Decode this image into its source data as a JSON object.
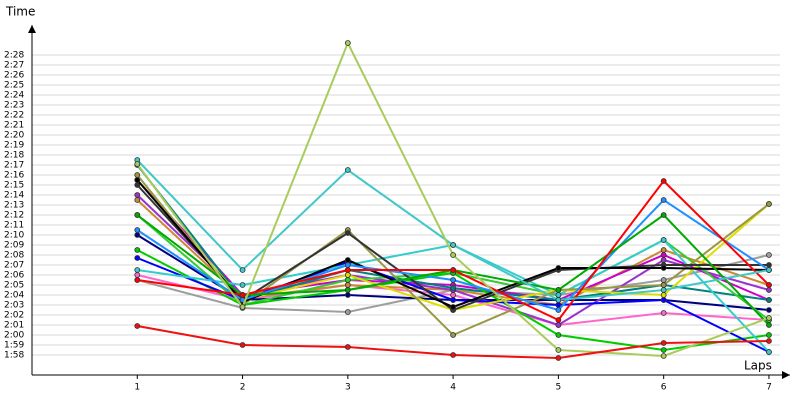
{
  "chart_data": {
    "type": "line",
    "y_label": "Time",
    "x_label": "Laps",
    "x": [
      1,
      2,
      3,
      4,
      5,
      6,
      7
    ],
    "xlim": [
      0,
      7.2
    ],
    "xticks": [
      1,
      2,
      3,
      4,
      5,
      6,
      7
    ],
    "ylim": [
      116,
      151
    ],
    "yticks": [
      {
        "value": 118,
        "label": "1:58"
      },
      {
        "value": 119,
        "label": "1:59"
      },
      {
        "value": 120,
        "label": "2:00"
      },
      {
        "value": 121,
        "label": "2:01"
      },
      {
        "value": 122,
        "label": "2:02"
      },
      {
        "value": 123,
        "label": "2:03"
      },
      {
        "value": 124,
        "label": "2:04"
      },
      {
        "value": 125,
        "label": "2:05"
      },
      {
        "value": 126,
        "label": "2:06"
      },
      {
        "value": 127,
        "label": "2:07"
      },
      {
        "value": 128,
        "label": "2:08"
      },
      {
        "value": 129,
        "label": "2:09"
      },
      {
        "value": 130,
        "label": "2:10"
      },
      {
        "value": 131,
        "label": "2:11"
      },
      {
        "value": 132,
        "label": "2:12"
      },
      {
        "value": 133,
        "label": "2:13"
      },
      {
        "value": 134,
        "label": "2:14"
      },
      {
        "value": 135,
        "label": "2:15"
      },
      {
        "value": 136,
        "label": "2:16"
      },
      {
        "value": 137,
        "label": "2:17"
      },
      {
        "value": 138,
        "label": "2:18"
      },
      {
        "value": 139,
        "label": "2:19"
      },
      {
        "value": 140,
        "label": "2:20"
      },
      {
        "value": 141,
        "label": "2:21"
      },
      {
        "value": 142,
        "label": "2:22"
      },
      {
        "value": 143,
        "label": "2:23"
      },
      {
        "value": 144,
        "label": "2:24"
      },
      {
        "value": 145,
        "label": "2:25"
      },
      {
        "value": 146,
        "label": "2:26"
      },
      {
        "value": 147,
        "label": "2:27"
      },
      {
        "value": 148,
        "label": "2:28"
      }
    ],
    "grid": true,
    "series": [
      {
        "color": "#9e9e9e",
        "values": [
          125.5,
          122.7,
          122.3,
          124.5,
          124,
          125.5,
          128
        ]
      },
      {
        "color": "#ff66cc",
        "values": [
          126,
          123.5,
          125,
          124,
          121,
          122.2,
          121.5
        ]
      },
      {
        "color": "#000080",
        "values": [
          130,
          123.5,
          124,
          123.5,
          123.5,
          123.5,
          122.5
        ]
      },
      {
        "color": "#cc8833",
        "values": [
          133.5,
          123.7,
          125,
          124.5,
          123,
          128.5,
          125
        ]
      },
      {
        "color": "#cc00cc",
        "values": [
          135.5,
          124,
          125.5,
          125,
          123.5,
          128,
          123.5
        ]
      },
      {
        "color": "#9933cc",
        "values": [
          134,
          124,
          126,
          124.5,
          121,
          127.5,
          124.5
        ]
      },
      {
        "color": "#008080",
        "values": [
          137,
          123.5,
          126.5,
          124.7,
          123.5,
          125,
          123.5
        ]
      },
      {
        "color": "#33cc33",
        "values": [
          132,
          123,
          125.5,
          126.2,
          124,
          129.5,
          121.5
        ]
      },
      {
        "color": "#00cc00",
        "values": [
          128.5,
          123,
          124.5,
          126.2,
          120,
          118.5,
          120
        ]
      },
      {
        "color": "#0000ff",
        "values": [
          127.7,
          123.5,
          127.3,
          123.5,
          123,
          123.5,
          118.3
        ]
      },
      {
        "color": "#33cccc",
        "values": [
          126.5,
          125,
          127,
          129,
          124,
          129.5,
          118.3
        ]
      },
      {
        "color": "#dddd00",
        "values": [
          135.5,
          123.5,
          126,
          122.5,
          124.5,
          124,
          133.1
        ]
      },
      {
        "color": "#999944",
        "values": [
          136,
          123,
          130.5,
          120,
          124.5,
          125,
          133.1
        ]
      },
      {
        "color": "#333333",
        "values": [
          135,
          123.5,
          130.2,
          122.5,
          126.5,
          127,
          127
        ]
      },
      {
        "color": "#000000",
        "values": [
          135.5,
          123.3,
          127.5,
          122.8,
          126.7,
          126.7,
          126.5
        ]
      },
      {
        "color": "#1e90ff",
        "values": [
          130.5,
          123.5,
          127,
          125.5,
          122.5,
          133.5,
          126.5
        ]
      },
      {
        "color": "#00aa00",
        "values": [
          132,
          124,
          124.5,
          126.5,
          124.5,
          132,
          121
        ]
      },
      {
        "color": "#ff0000",
        "values": [
          125.5,
          124,
          126.5,
          126.5,
          121.5,
          135.4,
          125
        ]
      },
      {
        "color": "#40c8c8",
        "values": [
          137.5,
          126.5,
          136.5,
          129,
          123.5,
          124.5,
          126.5
        ]
      },
      {
        "color": "#a8cc5c",
        "values": [
          137.1,
          122.8,
          149.2,
          128,
          118.5,
          117.9,
          121.7
        ]
      },
      {
        "color": "#ee1111",
        "values": [
          120.9,
          119,
          118.8,
          118,
          117.7,
          119.2,
          119.4
        ]
      }
    ]
  }
}
